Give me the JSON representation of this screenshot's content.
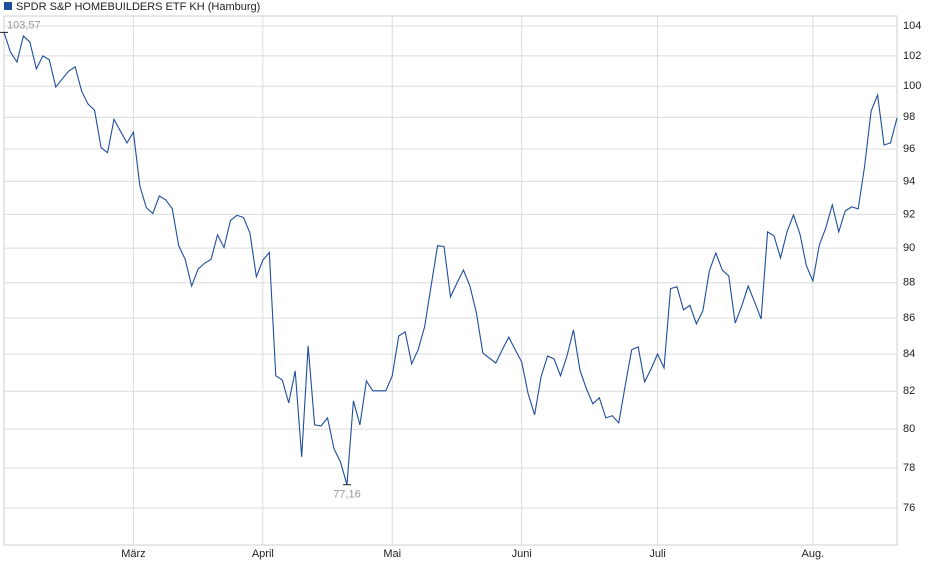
{
  "chart_data": {
    "type": "line",
    "categories": [
      null,
      null,
      null,
      null,
      null,
      null,
      null,
      null,
      null,
      null,
      null,
      null,
      null,
      null,
      null,
      null,
      null,
      null,
      null,
      null,
      "März",
      null,
      null,
      null,
      null,
      null,
      null,
      null,
      null,
      null,
      null,
      null,
      null,
      null,
      null,
      null,
      null,
      null,
      null,
      null,
      "April",
      null,
      null,
      null,
      null,
      null,
      null,
      null,
      null,
      null,
      null,
      null,
      null,
      null,
      null,
      null,
      null,
      null,
      null,
      null,
      "Mai",
      null,
      null,
      null,
      null,
      null,
      null,
      null,
      null,
      null,
      null,
      null,
      null,
      null,
      null,
      null,
      null,
      null,
      null,
      null,
      "Juni",
      null,
      null,
      null,
      null,
      null,
      null,
      null,
      null,
      null,
      null,
      null,
      null,
      null,
      null,
      null,
      null,
      null,
      null,
      null,
      null,
      "Juli",
      null,
      null,
      null,
      null,
      null,
      null,
      null,
      null,
      null,
      null,
      null,
      null,
      null,
      null,
      null,
      null,
      null,
      null,
      null,
      null,
      null,
      null,
      null,
      "Aug.",
      null,
      null,
      null,
      null,
      null,
      null,
      null,
      null,
      null,
      null,
      null,
      null,
      null
    ],
    "series": [
      {
        "name": "SPDR S&P HOMEBUILDERS ETF KH (Hamburg)",
        "color": "#1f4e9c",
        "values": [
          103.57,
          102.25,
          101.59,
          103.33,
          102.92,
          101.14,
          102.0,
          101.74,
          99.95,
          100.48,
          101.0,
          101.27,
          99.68,
          98.84,
          98.45,
          96.08,
          95.77,
          97.87,
          97.12,
          96.38,
          97.06,
          93.71,
          92.4,
          92.05,
          93.11,
          92.87,
          92.34,
          90.14,
          89.35,
          87.81,
          88.79,
          89.12,
          89.35,
          90.78,
          90.04,
          91.64,
          91.94,
          91.82,
          90.9,
          88.34,
          89.3,
          89.75,
          82.83,
          82.6,
          81.38,
          83.09,
          78.57,
          84.45,
          80.22,
          80.17,
          80.59,
          78.98,
          78.31,
          77.16,
          81.49,
          80.22,
          82.55,
          82.02,
          82.02,
          82.02,
          82.83,
          85.0,
          85.23,
          83.47,
          84.24,
          85.51,
          87.81,
          90.14,
          90.1,
          87.19,
          87.98,
          88.73,
          87.81,
          86.29,
          84.07,
          83.79,
          83.52,
          84.24,
          84.94,
          84.24,
          83.58,
          81.86,
          80.75,
          82.78,
          83.9,
          83.74,
          82.83,
          83.9,
          85.34,
          83.14,
          82.13,
          81.33,
          81.65,
          80.59,
          80.7,
          80.33,
          82.3,
          84.24,
          84.4,
          82.5,
          83.2,
          84.01,
          83.25,
          87.66,
          87.77,
          86.46,
          86.71,
          85.67,
          86.4,
          88.68,
          89.72,
          88.73,
          88.39,
          85.72,
          86.67,
          87.81,
          86.9,
          85.95,
          90.96,
          90.72,
          89.43,
          90.96,
          91.97,
          90.84,
          88.97,
          88.1,
          90.19,
          91.2,
          92.57,
          90.96,
          92.21,
          92.45,
          92.33,
          94.94,
          98.4,
          99.43,
          96.25,
          96.38,
          97.96
        ],
        "value_labels": [
          "103,57",
          null,
          null,
          null,
          null,
          null,
          null,
          null,
          null,
          null,
          null,
          null,
          null,
          null,
          null,
          null,
          null,
          null,
          null,
          null,
          null,
          null,
          null,
          null,
          null,
          null,
          null,
          null,
          null,
          null,
          null,
          null,
          null,
          null,
          null,
          null,
          null,
          null,
          null,
          null,
          null,
          null,
          null,
          null,
          null,
          null,
          null,
          null,
          null,
          null,
          null,
          null,
          null,
          "77,16",
          null,
          null,
          null,
          null,
          null,
          null,
          null,
          null,
          null,
          null,
          null,
          null,
          null,
          null,
          null,
          null,
          null,
          null,
          null,
          null,
          null,
          null,
          null,
          null,
          null,
          null,
          null,
          null,
          null,
          null,
          null,
          null,
          null,
          null,
          null,
          null,
          null,
          null,
          null,
          null,
          null,
          null,
          null,
          null,
          null,
          null,
          null,
          null,
          null,
          null,
          null,
          null,
          null,
          null,
          null,
          null,
          null,
          null,
          null,
          null,
          null,
          null,
          null,
          null,
          null,
          null,
          null,
          null,
          null,
          null,
          null,
          null,
          null,
          null,
          null,
          null,
          null,
          null,
          null,
          null,
          null,
          null,
          null,
          null,
          null
        ]
      }
    ],
    "ylim": [
      74.19,
      104.68
    ],
    "yticks": [
      76,
      78,
      80,
      82,
      84,
      86,
      88,
      90,
      92,
      94,
      96,
      98,
      100,
      102,
      104
    ],
    "log_scale": true,
    "grid": true,
    "legend": "top-left"
  }
}
